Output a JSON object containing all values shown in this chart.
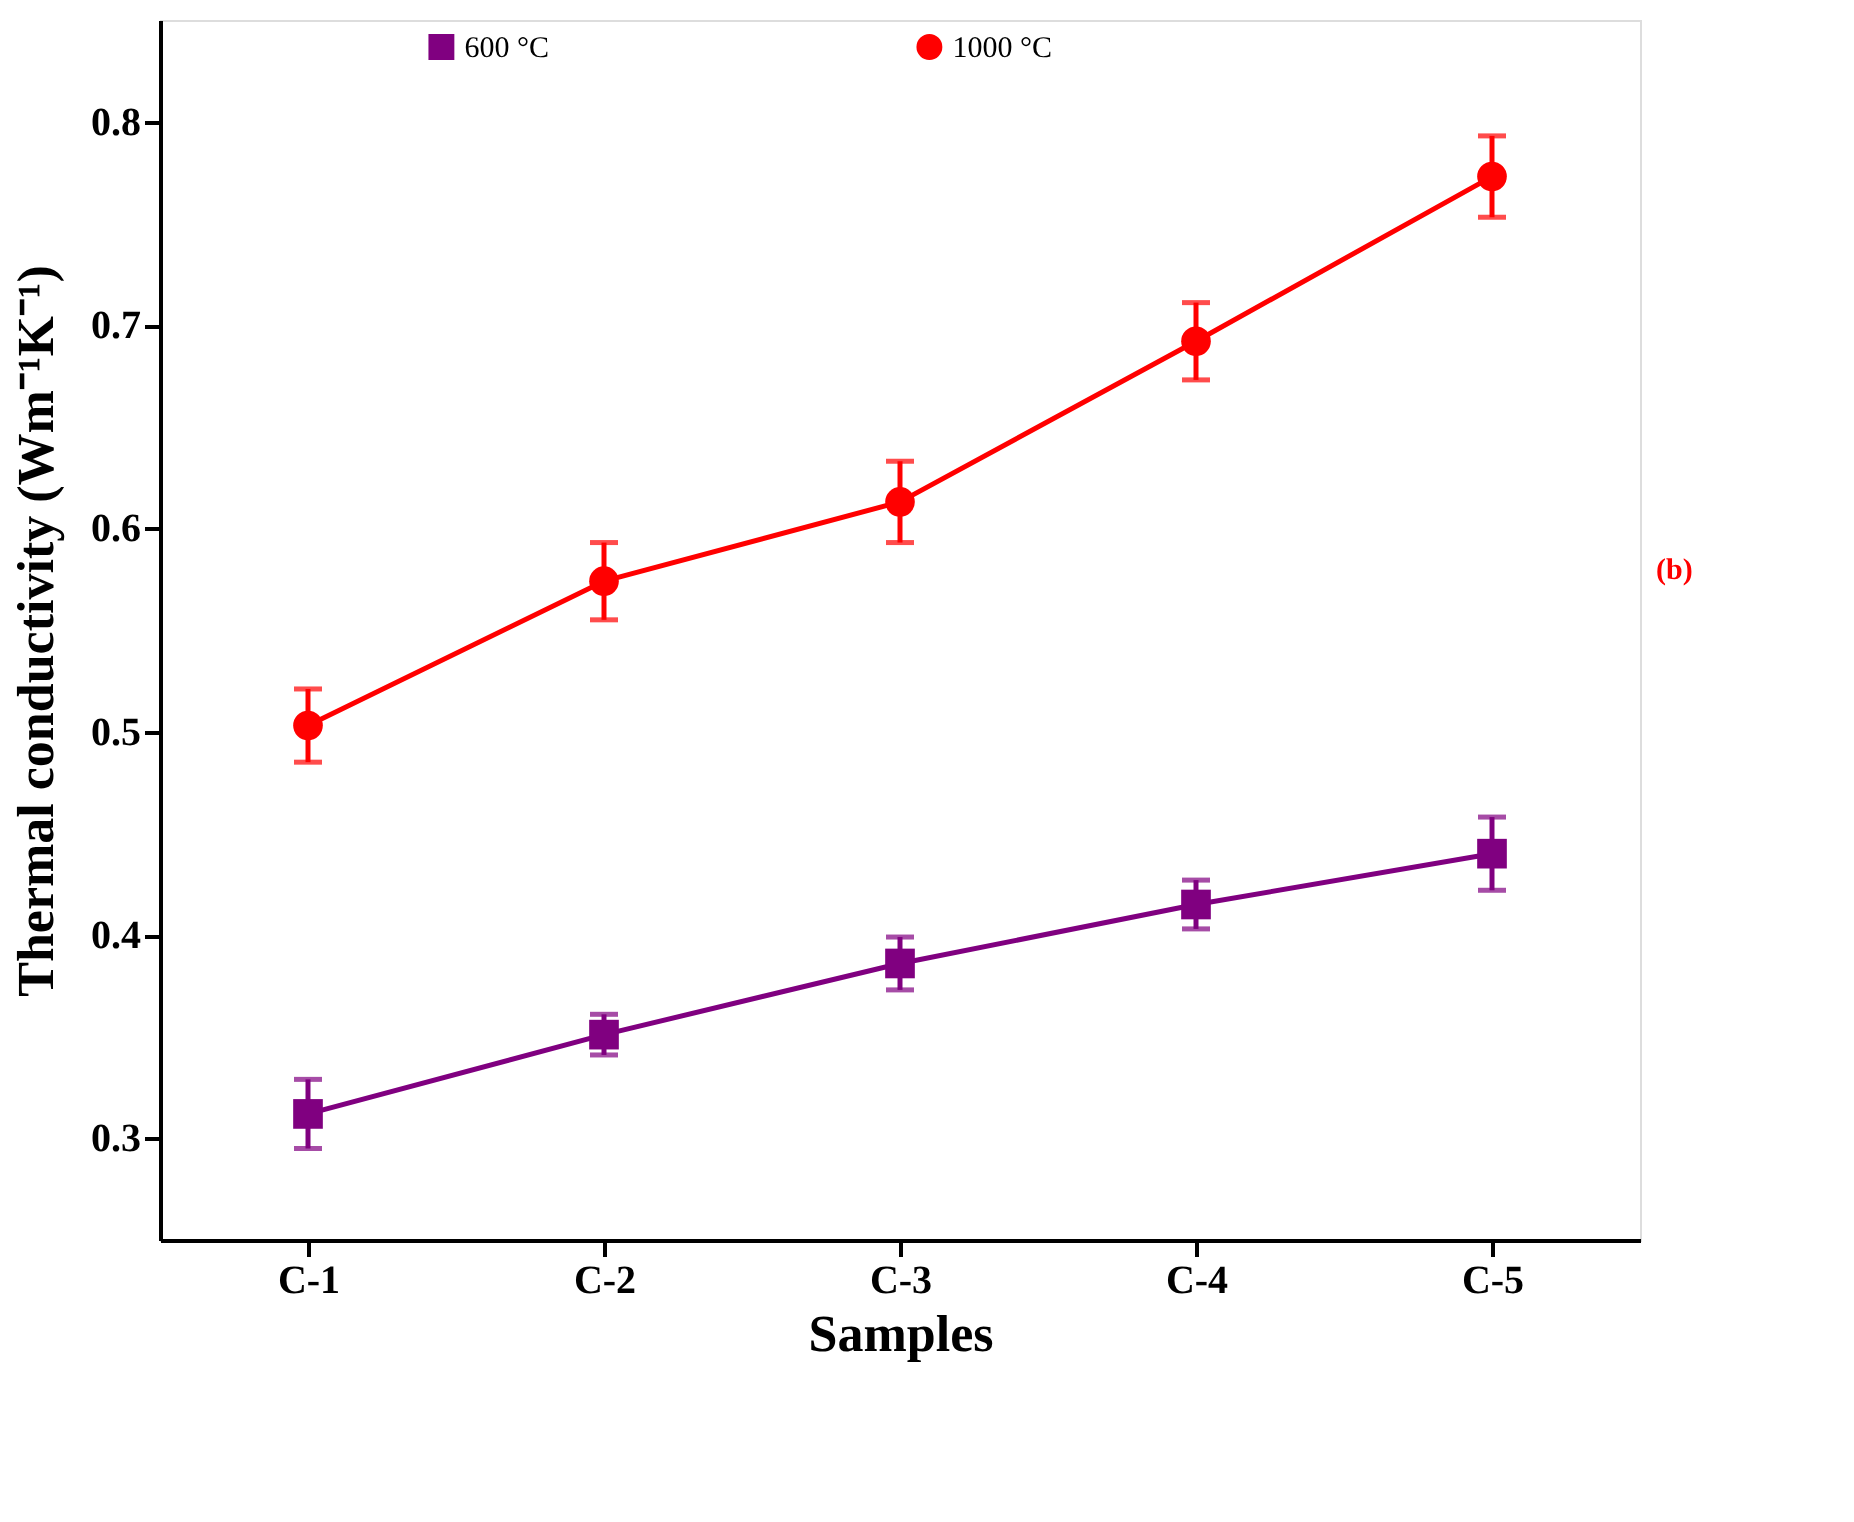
{
  "chart_data": {
    "type": "line",
    "xlabel": "Samples",
    "ylabel": "Thermal conductivity (Wm⁻¹K⁻¹)",
    "categories": [
      "C-1",
      "C-2",
      "C-3",
      "C-4",
      "C-5"
    ],
    "series": [
      {
        "name": "600 °C",
        "color": "#800080",
        "marker": "square",
        "values": [
          0.312,
          0.351,
          0.386,
          0.415,
          0.44
        ],
        "errors": [
          0.017,
          0.01,
          0.013,
          0.012,
          0.018
        ]
      },
      {
        "name": "1000 °C",
        "color": "#ff0000",
        "marker": "circle",
        "values": [
          0.503,
          0.574,
          0.613,
          0.692,
          0.773
        ],
        "errors": [
          0.018,
          0.019,
          0.02,
          0.019,
          0.02
        ]
      }
    ],
    "ylim": [
      0.25,
      0.85
    ],
    "yticks": [
      0.3,
      0.4,
      0.5,
      0.6,
      0.7,
      0.8
    ],
    "grid": false,
    "legend": "top",
    "line_style": "solid",
    "annotations": [
      "(b)"
    ]
  }
}
